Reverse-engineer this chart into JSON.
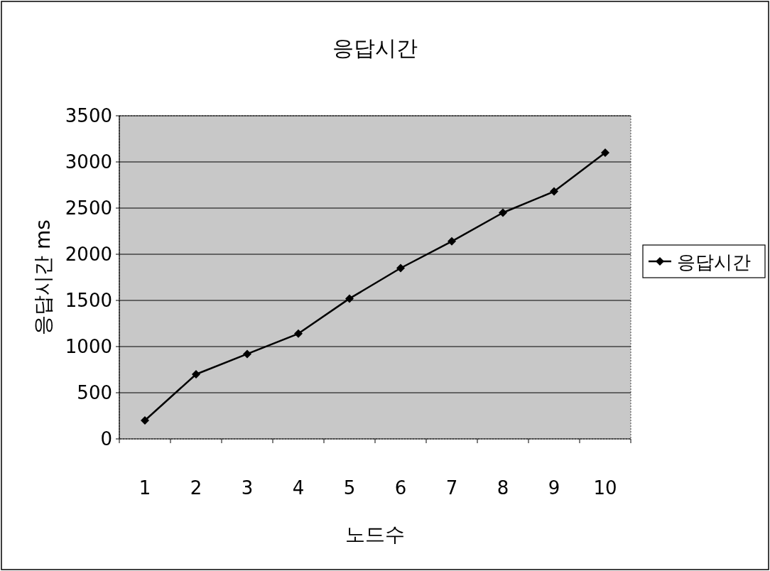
{
  "chart_data": {
    "type": "line",
    "title": "응답시간",
    "xlabel": "노드수",
    "ylabel": "응답시간 ms",
    "categories": [
      "1",
      "2",
      "3",
      "4",
      "5",
      "6",
      "7",
      "8",
      "9",
      "10"
    ],
    "series": [
      {
        "name": "응답시간",
        "color": "#000000",
        "values": [
          200,
          700,
          920,
          1140,
          1520,
          1850,
          2140,
          2450,
          2680,
          3100
        ]
      }
    ],
    "ylim": [
      0,
      3500
    ],
    "yticks": [
      0,
      500,
      1000,
      1500,
      2000,
      2500,
      3000,
      3500
    ],
    "grid": "y",
    "legend": "right",
    "marker": "diamond",
    "line_style": "solid"
  }
}
